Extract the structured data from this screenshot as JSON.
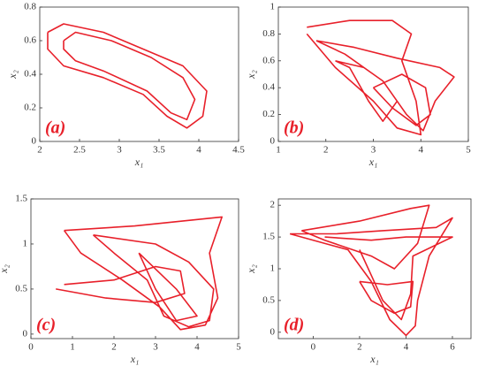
{
  "chart_data": [
    {
      "type": "line",
      "panel_label": "(a)",
      "xlabel": "x₁",
      "ylabel": "x₂",
      "color": "#e8202a",
      "xlim": [
        2,
        4.5
      ],
      "ylim": [
        0,
        0.8
      ],
      "xticks": [
        2,
        2.5,
        3,
        3.5,
        4,
        4.5
      ],
      "yticks": [
        0,
        0.2,
        0.4,
        0.6,
        0.8
      ],
      "x": [
        2.1,
        2.3,
        2.8,
        3.3,
        3.8,
        4.1,
        4.05,
        3.85,
        3.6,
        3.3,
        2.8,
        2.3,
        2.1,
        2.1,
        null,
        2.3,
        2.45,
        2.9,
        3.4,
        3.8,
        3.95,
        3.85,
        3.65,
        3.35,
        2.8,
        2.45,
        2.3,
        2.3
      ],
      "values": [
        0.65,
        0.7,
        0.65,
        0.55,
        0.45,
        0.3,
        0.15,
        0.08,
        0.15,
        0.28,
        0.38,
        0.45,
        0.55,
        0.65,
        null,
        0.6,
        0.65,
        0.6,
        0.5,
        0.38,
        0.25,
        0.13,
        0.17,
        0.3,
        0.42,
        0.48,
        0.55,
        0.6
      ]
    },
    {
      "type": "line",
      "panel_label": "(b)",
      "xlabel": "x₁",
      "ylabel": "x₂",
      "color": "#e8202a",
      "xlim": [
        1,
        5
      ],
      "ylim": [
        0,
        1
      ],
      "xticks": [
        1,
        2,
        3,
        4,
        5
      ],
      "yticks": [
        0,
        0.2,
        0.4,
        0.6,
        0.8,
        1
      ],
      "x": [
        1.6,
        2.5,
        3.4,
        3.8,
        3.6,
        3.9,
        4.0,
        3.5,
        3.0,
        2.2,
        1.6,
        null,
        1.8,
        2.6,
        3.5,
        4.4,
        4.7,
        4.3,
        4.05,
        3.7,
        3.2,
        2.4,
        1.8,
        null,
        2.2,
        2.8,
        3.2,
        3.5,
        3.2,
        2.9,
        2.5,
        2.2,
        null,
        3.0,
        3.6,
        4.1,
        4.2,
        3.9,
        3.4,
        3.0
      ],
      "values": [
        0.85,
        0.9,
        0.9,
        0.8,
        0.6,
        0.3,
        0.05,
        0.1,
        0.3,
        0.55,
        0.8,
        null,
        0.75,
        0.7,
        0.62,
        0.55,
        0.48,
        0.3,
        0.08,
        0.2,
        0.45,
        0.65,
        0.75,
        null,
        0.6,
        0.55,
        0.45,
        0.3,
        0.15,
        0.3,
        0.55,
        0.6,
        null,
        0.4,
        0.5,
        0.4,
        0.2,
        0.12,
        0.25,
        0.4
      ]
    },
    {
      "type": "line",
      "panel_label": "(c)",
      "xlabel": "x₁",
      "ylabel": "x₂",
      "color": "#e8202a",
      "xlim": [
        0,
        5
      ],
      "ylim": [
        -0.05,
        1.5
      ],
      "xticks": [
        0,
        1,
        2,
        3,
        4,
        5
      ],
      "yticks": [
        0,
        0.5,
        1,
        1.5
      ],
      "x": [
        0.8,
        2.5,
        4.6,
        4.3,
        4.5,
        4.2,
        3.6,
        3.1,
        2.2,
        1.2,
        0.8,
        null,
        1.5,
        3,
        3.8,
        4.4,
        4.3,
        3.8,
        3.2,
        2.8,
        2,
        1.5,
        null,
        0.6,
        1.8,
        3,
        3.7,
        3.6,
        3,
        2,
        0.8,
        null,
        2.6,
        3.5,
        4.0,
        3.5,
        3.0,
        2.6
      ],
      "values": [
        1.15,
        1.2,
        1.3,
        0.9,
        0.4,
        0.1,
        0.05,
        0.3,
        0.6,
        0.9,
        1.15,
        null,
        1.1,
        1.0,
        0.8,
        0.5,
        0.15,
        0.08,
        0.2,
        0.6,
        0.9,
        1.1,
        null,
        0.5,
        0.4,
        0.35,
        0.45,
        0.7,
        0.75,
        0.6,
        0.55,
        null,
        0.9,
        0.5,
        0.2,
        0.15,
        0.5,
        0.9
      ]
    },
    {
      "type": "line",
      "panel_label": "(d)",
      "xlabel": "x₁",
      "ylabel": "x₂",
      "color": "#e8202a",
      "xlim": [
        -1.5,
        6.8
      ],
      "ylim": [
        -0.1,
        2.1
      ],
      "xticks": [
        0,
        2,
        4,
        6
      ],
      "yticks": [
        0,
        0.5,
        1,
        1.5,
        2
      ],
      "x": [
        -1,
        1,
        3,
        5.3,
        6,
        5,
        4.5,
        4.4,
        4,
        3.3,
        2.5,
        1.5,
        -1,
        null,
        -0.5,
        2,
        4.2,
        5,
        4.5,
        3.5,
        2.5,
        0.5,
        -0.5,
        null,
        0.5,
        2.5,
        4,
        6,
        4.3,
        4.2,
        3.8,
        3,
        2.5,
        2,
        null,
        2,
        3.2,
        4.3,
        4.2,
        3.5,
        2.5,
        2
      ],
      "values": [
        1.55,
        1.55,
        1.6,
        1.65,
        1.8,
        1.2,
        0.5,
        0.1,
        -0.05,
        0.2,
        0.8,
        1.3,
        1.55,
        null,
        1.6,
        1.75,
        1.95,
        2.0,
        1.4,
        1.0,
        1.2,
        1.45,
        1.6,
        null,
        1.5,
        1.45,
        1.5,
        1.5,
        1.2,
        0.6,
        0.2,
        0.5,
        0.9,
        1.3,
        null,
        0.8,
        0.75,
        0.8,
        0.4,
        0.3,
        0.5,
        0.8
      ]
    }
  ]
}
